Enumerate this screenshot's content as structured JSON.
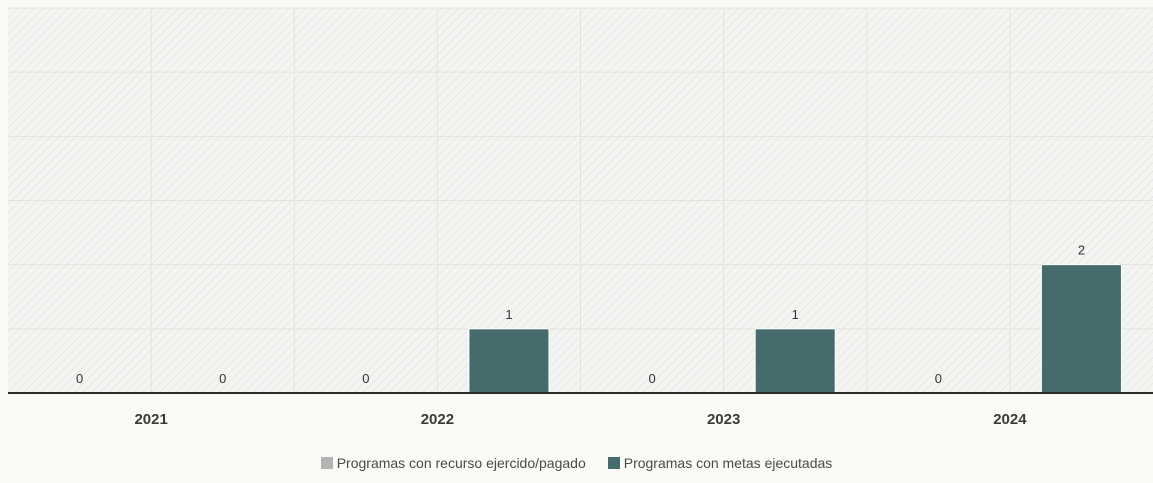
{
  "chart_data": {
    "type": "bar",
    "categories": [
      "2021",
      "2022",
      "2023",
      "2024"
    ],
    "series": [
      {
        "name": "Programas con recurso ejercido/pagado",
        "values": [
          0,
          0,
          0,
          0
        ],
        "color": "#b4b4b4"
      },
      {
        "name": "Programas con metas ejecutadas",
        "values": [
          0,
          1,
          1,
          2
        ],
        "color": "#456b6c"
      }
    ],
    "ylim": [
      0,
      6
    ],
    "grid": true,
    "legend_position": "bottom",
    "data_labels": true,
    "title": "",
    "xlabel": "",
    "ylabel": ""
  }
}
